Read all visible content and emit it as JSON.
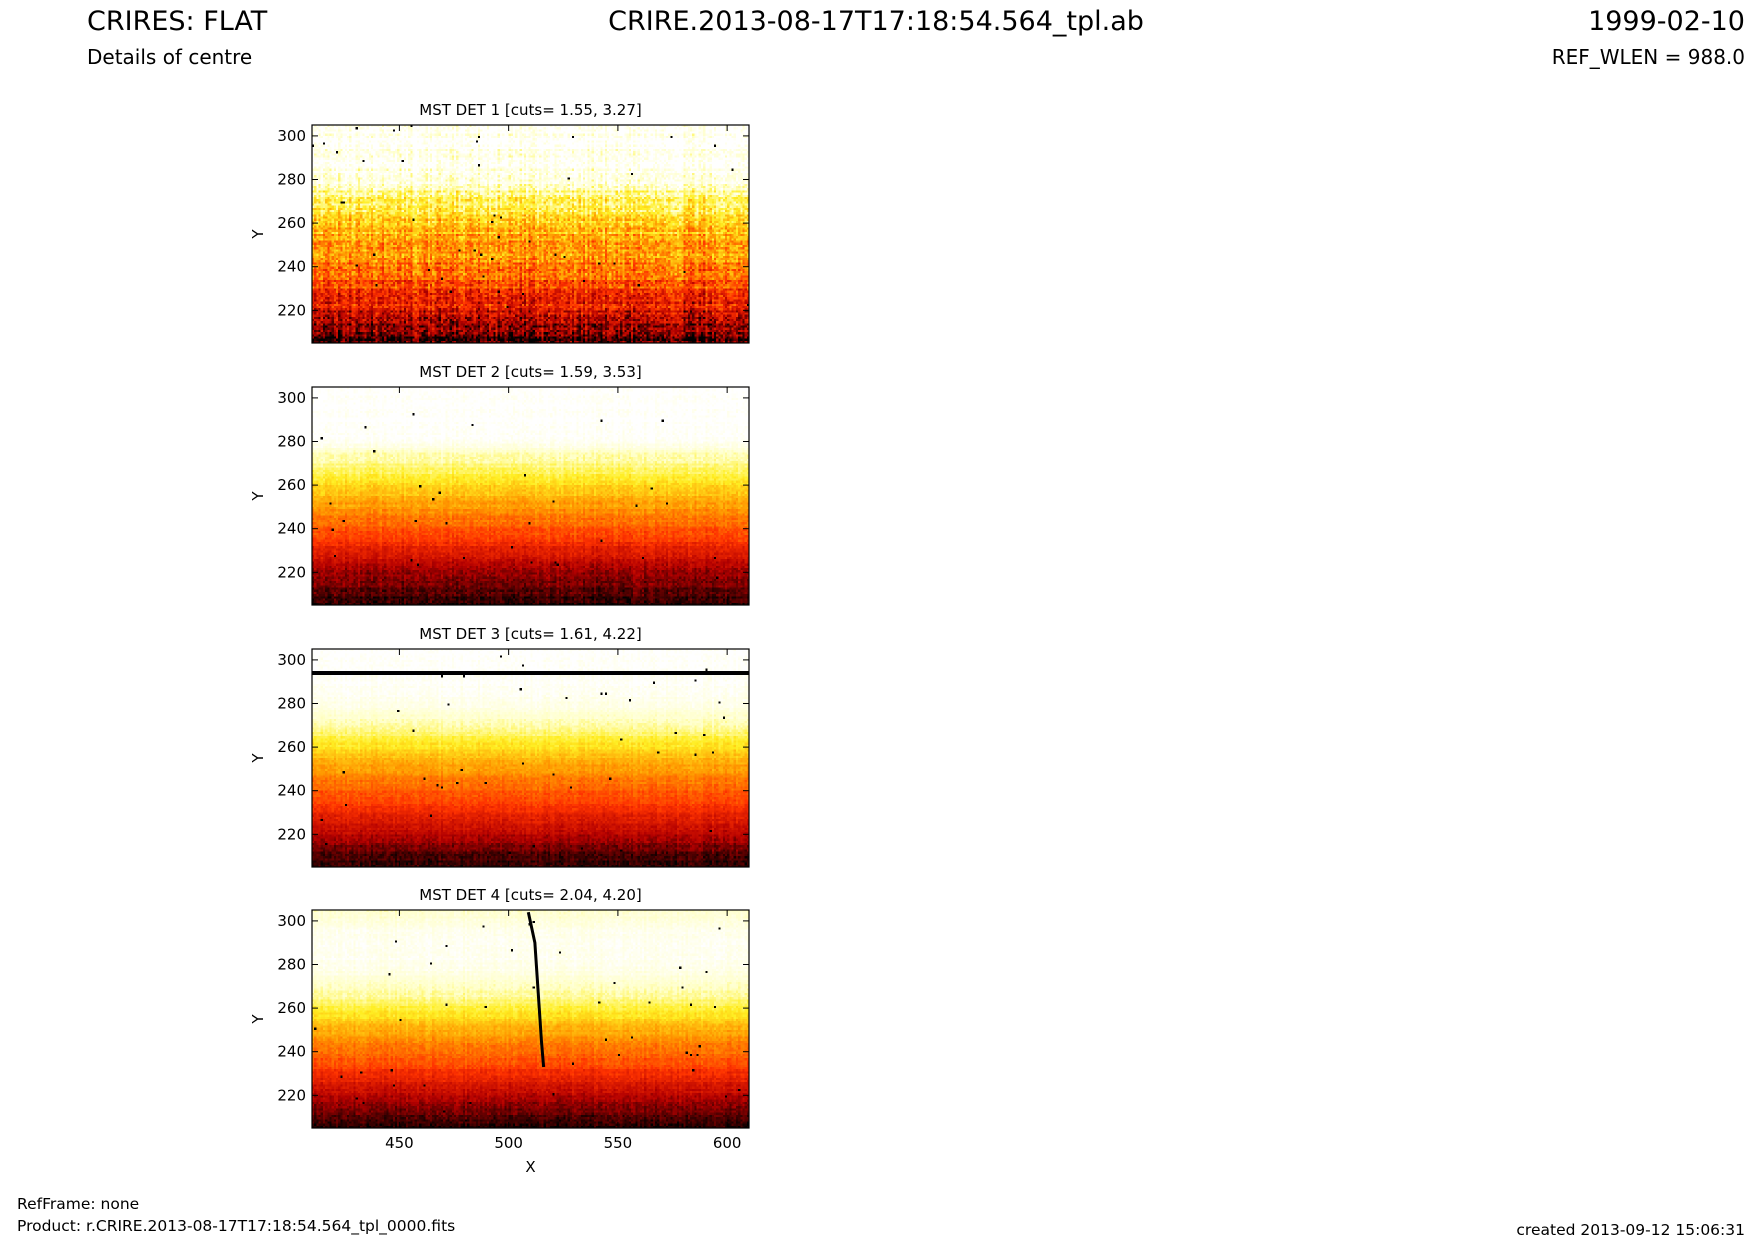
{
  "header": {
    "title_left": "CRIRES: FLAT",
    "subtitle_left": "Details of centre",
    "title_center": "CRIRE.2013-08-17T17:18:54.564_tpl.ab",
    "title_right": "1999-02-10",
    "subtitle_right": "REF_WLEN = 988.0"
  },
  "footer": {
    "refframe": "RefFrame: none",
    "product": "Product: r.CRIRE.2013-08-17T17:18:54.564_tpl_0000.fits",
    "created": "created 2013-09-12 15:06:31"
  },
  "colors": {
    "colormap": "hot",
    "colormap_stops": [
      "#000000",
      "#b30000",
      "#ff3300",
      "#ff9900",
      "#ffee22",
      "#ffffc8",
      "#ffffff"
    ]
  },
  "chart_data": [
    {
      "type": "heatmap",
      "title": "MST DET 1 [cuts= 1.55, 3.27]",
      "xlabel": "",
      "ylabel": "Y",
      "xlim": [
        410,
        610
      ],
      "ylim": [
        205,
        305
      ],
      "xticks": [],
      "yticks": [
        220,
        240,
        260,
        280,
        300
      ],
      "yticklabels": [
        "220",
        "240",
        "260",
        "280",
        "300"
      ],
      "profile_y": [
        205,
        215,
        225,
        235,
        245,
        255,
        265,
        272,
        278,
        290,
        305
      ],
      "profile_level": [
        0.05,
        0.18,
        0.3,
        0.4,
        0.48,
        0.56,
        0.65,
        0.75,
        0.88,
        0.97,
        0.99
      ],
      "noise": 0.22,
      "defects": []
    },
    {
      "type": "heatmap",
      "title": "MST DET 2 [cuts= 1.59, 3.53]",
      "xlabel": "",
      "ylabel": "Y",
      "xlim": [
        410,
        610
      ],
      "ylim": [
        205,
        305
      ],
      "xticks": [],
      "yticks": [
        220,
        240,
        260,
        280,
        300
      ],
      "yticklabels": [
        "220",
        "240",
        "260",
        "280",
        "300"
      ],
      "profile_y": [
        205,
        215,
        225,
        235,
        245,
        255,
        262,
        268,
        274,
        280,
        290,
        305
      ],
      "profile_level": [
        0.03,
        0.1,
        0.2,
        0.33,
        0.45,
        0.56,
        0.65,
        0.75,
        0.82,
        0.97,
        1.0,
        1.0
      ],
      "noise": 0.08,
      "defects": []
    },
    {
      "type": "heatmap",
      "title": "MST DET 3 [cuts= 1.61, 4.22]",
      "xlabel": "",
      "ylabel": "Y",
      "xlim": [
        410,
        610
      ],
      "ylim": [
        205,
        305
      ],
      "xticks": [],
      "yticks": [
        220,
        240,
        260,
        280,
        300
      ],
      "yticklabels": [
        "220",
        "240",
        "260",
        "280",
        "300"
      ],
      "profile_y": [
        205,
        215,
        225,
        235,
        245,
        255,
        262,
        270,
        278,
        286,
        292,
        305
      ],
      "profile_level": [
        0.03,
        0.12,
        0.24,
        0.35,
        0.45,
        0.56,
        0.67,
        0.8,
        0.92,
        0.96,
        0.98,
        1.0
      ],
      "noise": 0.07,
      "defects": [
        {
          "kind": "hline",
          "y": 294,
          "x0": 410,
          "x1": 610
        }
      ]
    },
    {
      "type": "heatmap",
      "title": "MST DET 4 [cuts= 2.04, 4.20]",
      "xlabel": "X",
      "ylabel": "Y",
      "xlim": [
        410,
        610
      ],
      "ylim": [
        205,
        305
      ],
      "xticks": [
        450,
        500,
        550,
        600
      ],
      "xticklabels": [
        "450",
        "500",
        "550",
        "600"
      ],
      "yticks": [
        220,
        240,
        260,
        280,
        300
      ],
      "yticklabels": [
        "220",
        "240",
        "260",
        "280",
        "300"
      ],
      "profile_y": [
        205,
        215,
        225,
        235,
        245,
        252,
        258,
        265,
        272,
        280,
        290,
        298,
        305
      ],
      "profile_level": [
        0.03,
        0.12,
        0.25,
        0.37,
        0.48,
        0.57,
        0.66,
        0.78,
        0.87,
        0.95,
        0.97,
        0.93,
        0.84
      ],
      "noise": 0.07,
      "defects": [
        {
          "kind": "polyline",
          "points": [
            [
              509,
              304
            ],
            [
              512,
              290
            ],
            [
              513,
              275
            ],
            [
              514,
              260
            ],
            [
              515,
              245
            ],
            [
              516,
              233
            ]
          ]
        }
      ]
    }
  ]
}
